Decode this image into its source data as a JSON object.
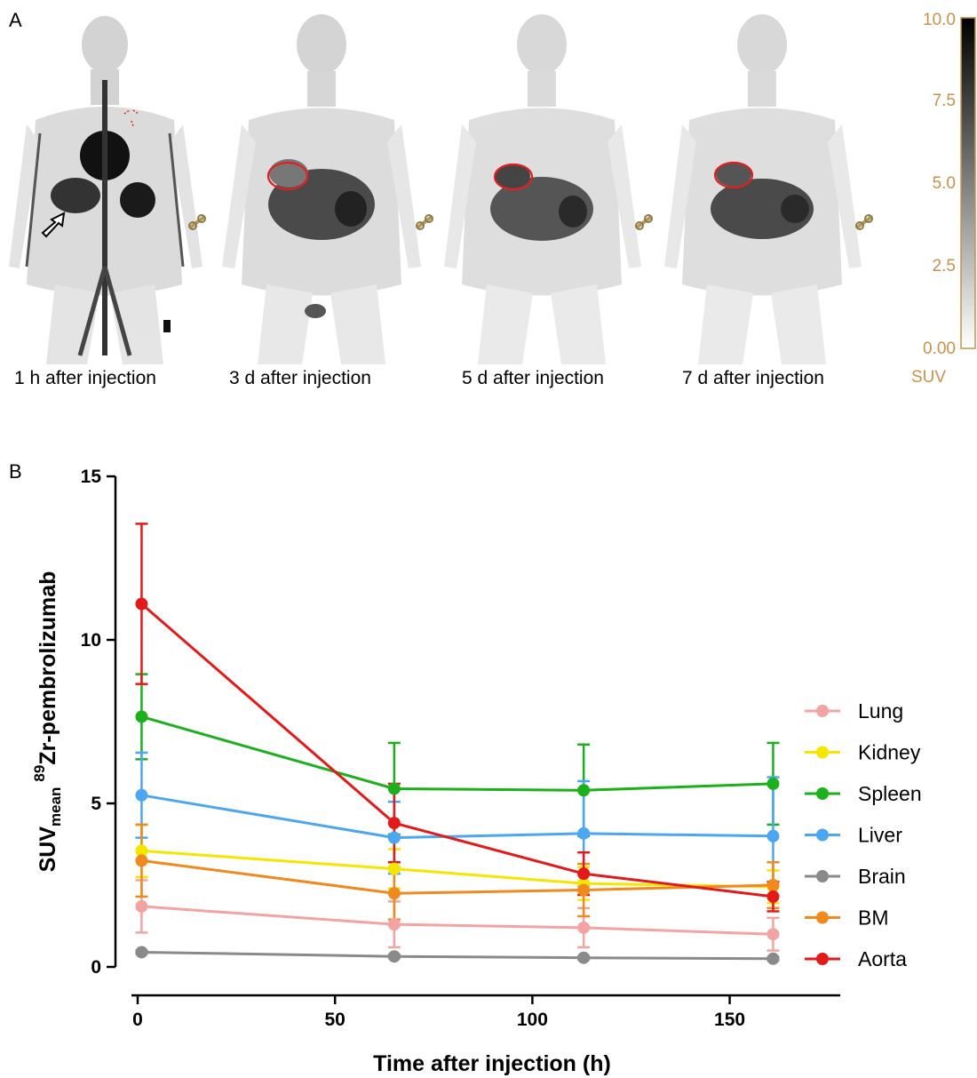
{
  "panel_a": {
    "letter": "A",
    "images": [
      {
        "caption": "1 h after injection"
      },
      {
        "caption": "3 d after injection"
      },
      {
        "caption": "5 d after injection"
      },
      {
        "caption": "7 d after injection"
      }
    ],
    "colorbar": {
      "ticks": [
        "10.0",
        "7.5",
        "5.0",
        "2.5",
        "0.00"
      ],
      "label": "SUV",
      "tick_color": "#c8924a"
    }
  },
  "panel_b": {
    "letter": "B"
  },
  "chart_data": {
    "type": "line",
    "xlabel": "Time after injection (h)",
    "ylabel_parts": {
      "base": "SUV",
      "sub": "mean",
      "sup": "89",
      "rest": "Zr-pembrolizumab"
    },
    "xlim": [
      0,
      178
    ],
    "ylim": [
      0,
      15
    ],
    "xticks": [
      0,
      50,
      100,
      150
    ],
    "yticks": [
      0,
      5,
      10,
      15
    ],
    "x": [
      1,
      65,
      113,
      161
    ],
    "legend_position": "right",
    "grid": false,
    "series": [
      {
        "name": "Lung",
        "color": "#f4a3a3",
        "values": [
          1.85,
          1.3,
          1.2,
          1.0
        ],
        "err": [
          0.8,
          0.7,
          0.6,
          0.5
        ]
      },
      {
        "name": "Kidney",
        "color": "#f5e600",
        "values": [
          3.55,
          3.0,
          2.55,
          2.45
        ],
        "err": [
          0.8,
          0.6,
          0.5,
          0.5
        ]
      },
      {
        "name": "Spleen",
        "color": "#1db01d",
        "values": [
          7.65,
          5.45,
          5.4,
          5.6
        ],
        "err": [
          1.3,
          1.4,
          1.4,
          1.25
        ]
      },
      {
        "name": "Liver",
        "color": "#4da6f0",
        "values": [
          5.25,
          3.95,
          4.08,
          4.0
        ],
        "err": [
          1.3,
          1.1,
          1.6,
          1.8
        ]
      },
      {
        "name": "Brain",
        "color": "#8a8a8a",
        "values": [
          0.45,
          0.32,
          0.28,
          0.25
        ],
        "err": [
          0.05,
          0.05,
          0.05,
          0.05
        ]
      },
      {
        "name": "BM",
        "color": "#f08a1e",
        "values": [
          3.25,
          2.25,
          2.35,
          2.5
        ],
        "err": [
          1.1,
          0.8,
          0.8,
          0.7
        ]
      },
      {
        "name": "Aorta",
        "color": "#e31a1a",
        "values": [
          11.1,
          4.4,
          2.85,
          2.15
        ],
        "err": [
          2.45,
          1.2,
          0.65,
          0.45
        ]
      }
    ]
  }
}
